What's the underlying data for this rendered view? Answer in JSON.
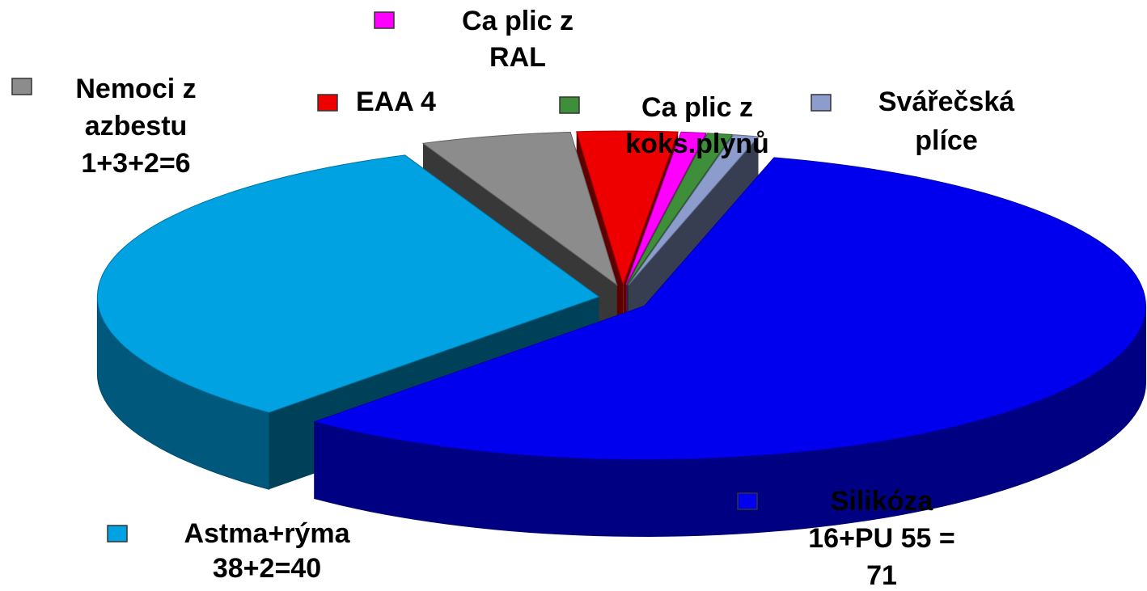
{
  "chart_data": {
    "type": "pie3d",
    "categories": [
      [
        "Silikóza",
        "16+PU 55 =",
        "71"
      ],
      [
        "Astma+rýma",
        "38+2=40"
      ],
      [
        "Nemoci z",
        "azbestu",
        "1+3+2=6"
      ],
      [
        "EAA 4"
      ],
      [
        "Ca plic z",
        "RAL"
      ],
      [
        "Ca plic z",
        "koks.plynů"
      ],
      [
        "Svářečská",
        "plíce"
      ]
    ],
    "values": [
      71,
      40,
      6,
      4,
      1,
      1,
      1
    ],
    "colors": [
      "#0000ee",
      "#00a2e2",
      "#8c8c8c",
      "#ee0000",
      "#ff00ff",
      "#3f8f3a",
      "#8c9ccc"
    ]
  }
}
